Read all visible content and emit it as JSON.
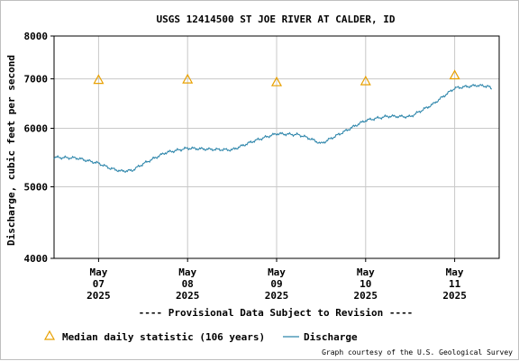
{
  "chart_data": {
    "type": "line",
    "title": "USGS 12414500 ST JOE RIVER AT CALDER, ID",
    "ylabel": "Discharge, cubic feet per second",
    "y_scale": "log",
    "ylim": [
      4000,
      8000
    ],
    "y_ticks": [
      4000,
      5000,
      6000,
      7000,
      8000
    ],
    "xlim": [
      "2025-05-06T12:00",
      "2025-05-11T12:00"
    ],
    "x_ticks": [
      {
        "date": "2025-05-07T00:00",
        "label": [
          "May",
          "07",
          "2025"
        ]
      },
      {
        "date": "2025-05-08T00:00",
        "label": [
          "May",
          "08",
          "2025"
        ]
      },
      {
        "date": "2025-05-09T00:00",
        "label": [
          "May",
          "09",
          "2025"
        ]
      },
      {
        "date": "2025-05-10T00:00",
        "label": [
          "May",
          "10",
          "2025"
        ]
      },
      {
        "date": "2025-05-11T00:00",
        "label": [
          "May",
          "11",
          "2025"
        ]
      }
    ],
    "grid": true,
    "series": [
      {
        "name": "Discharge",
        "kind": "line",
        "color": "#2e86ab",
        "points": [
          {
            "x": "2025-05-06T12:00",
            "y": 5480
          },
          {
            "x": "2025-05-06T18:00",
            "y": 5470
          },
          {
            "x": "2025-05-07T00:00",
            "y": 5380
          },
          {
            "x": "2025-05-07T03:00",
            "y": 5300
          },
          {
            "x": "2025-05-07T06:00",
            "y": 5250
          },
          {
            "x": "2025-05-07T09:00",
            "y": 5260
          },
          {
            "x": "2025-05-07T12:00",
            "y": 5370
          },
          {
            "x": "2025-05-07T18:00",
            "y": 5560
          },
          {
            "x": "2025-05-08T00:00",
            "y": 5640
          },
          {
            "x": "2025-05-08T06:00",
            "y": 5620
          },
          {
            "x": "2025-05-08T12:00",
            "y": 5610
          },
          {
            "x": "2025-05-08T18:00",
            "y": 5770
          },
          {
            "x": "2025-05-09T00:00",
            "y": 5900
          },
          {
            "x": "2025-05-09T06:00",
            "y": 5880
          },
          {
            "x": "2025-05-09T09:00",
            "y": 5810
          },
          {
            "x": "2025-05-09T12:00",
            "y": 5720
          },
          {
            "x": "2025-05-09T18:00",
            "y": 5930
          },
          {
            "x": "2025-05-10T00:00",
            "y": 6150
          },
          {
            "x": "2025-05-10T06:00",
            "y": 6230
          },
          {
            "x": "2025-05-10T12:00",
            "y": 6220
          },
          {
            "x": "2025-05-10T18:00",
            "y": 6460
          },
          {
            "x": "2025-05-11T00:00",
            "y": 6800
          },
          {
            "x": "2025-05-11T06:00",
            "y": 6860
          },
          {
            "x": "2025-05-11T09:00",
            "y": 6840
          },
          {
            "x": "2025-05-11T10:00",
            "y": 6780
          }
        ]
      },
      {
        "name": "Median daily statistic (106 years)",
        "kind": "marker",
        "marker": "triangle",
        "color": "#e8a000",
        "points": [
          {
            "x": "2025-05-07T00:00",
            "y": 6980
          },
          {
            "x": "2025-05-08T00:00",
            "y": 6990
          },
          {
            "x": "2025-05-09T00:00",
            "y": 6930
          },
          {
            "x": "2025-05-10T00:00",
            "y": 6950
          },
          {
            "x": "2025-05-11T00:00",
            "y": 7080
          }
        ]
      }
    ]
  },
  "notice": "---- Provisional Data Subject to Revision ----",
  "notice_color": "#e00000",
  "legend": {
    "median_label": "Median daily statistic (106 years)",
    "discharge_label": "Discharge"
  },
  "credit": "Graph courtesy of the U.S. Geological Survey"
}
